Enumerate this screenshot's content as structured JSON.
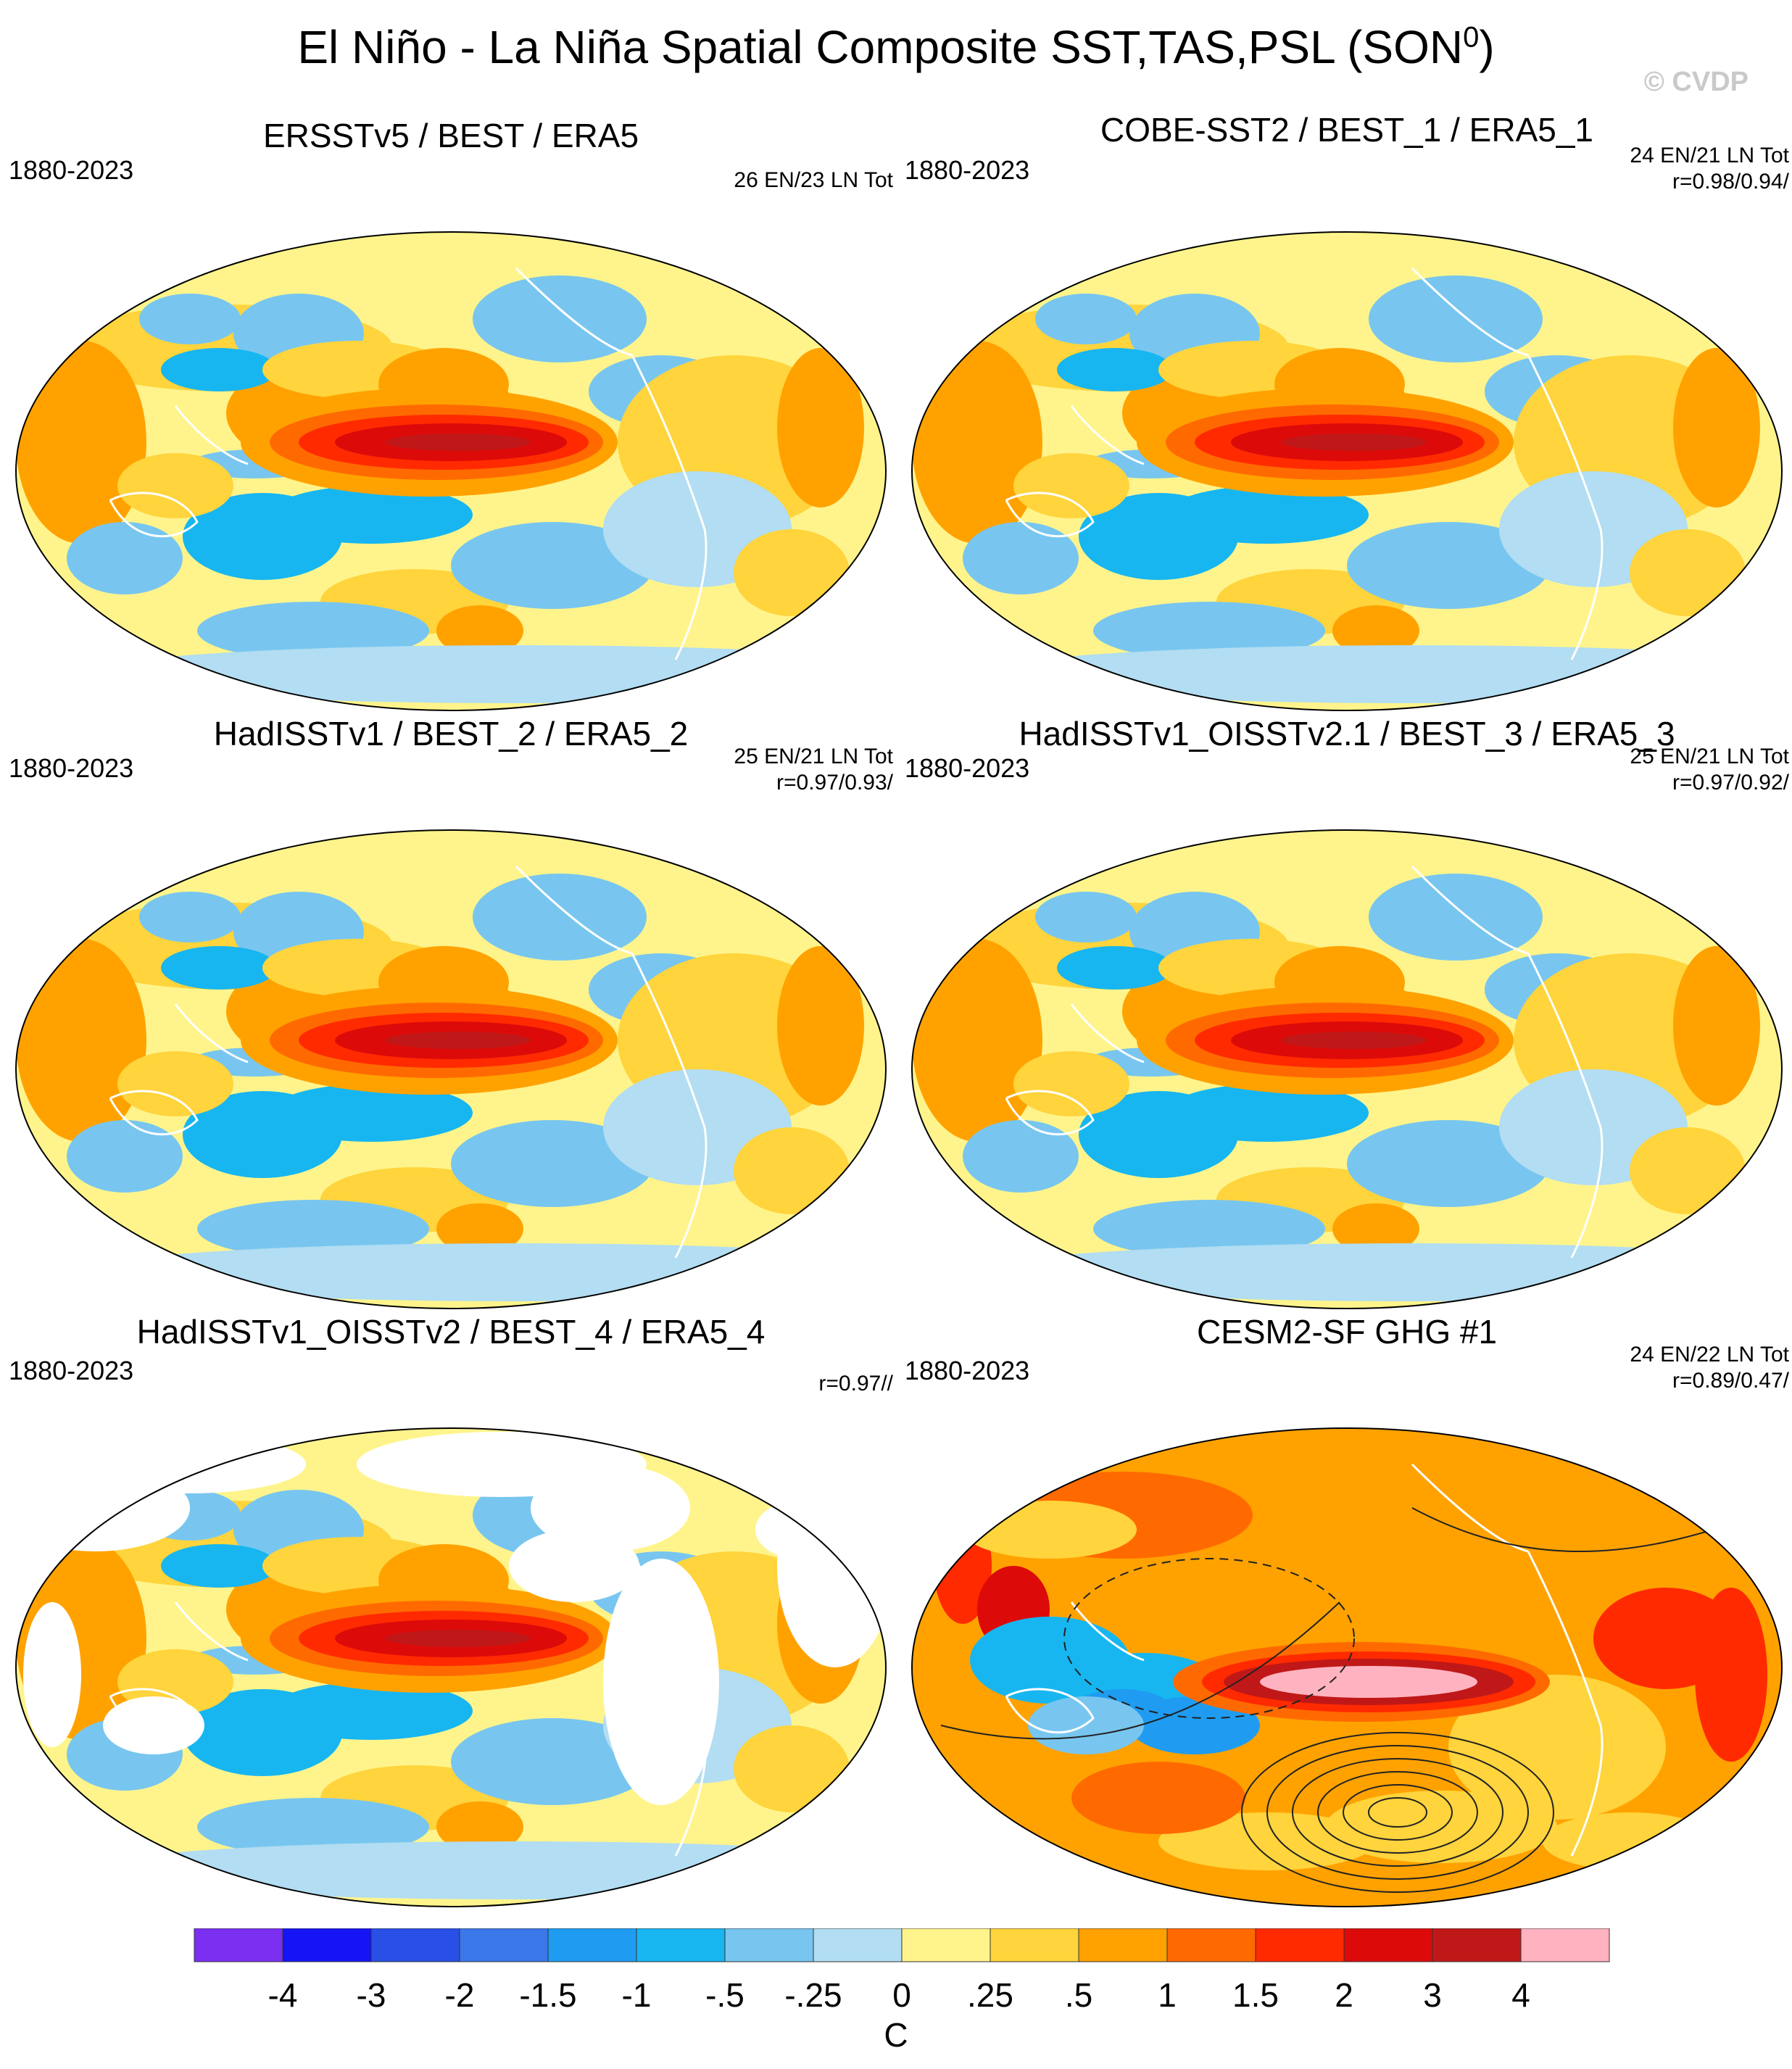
{
  "title": "El Niño - La Niña Spatial Composite SST,TAS,PSL (SON",
  "title_sup": "0",
  "title_end": ")",
  "watermark": "© CVDP",
  "panels": [
    {
      "title": "ERSSTv5 / BEST / ERA5",
      "years": "1880-2023",
      "stat1": "26 EN/23 LN Tot",
      "stat2": ""
    },
    {
      "title": "COBE-SST2 / BEST_1 / ERA5_1",
      "years": "1880-2023",
      "stat1": "24 EN/21 LN Tot",
      "stat2": "r=0.98/0.94/"
    },
    {
      "title": "HadISSTv1 / BEST_2 / ERA5_2",
      "years": "1880-2023",
      "stat1": "25 EN/21 LN Tot",
      "stat2": "r=0.97/0.93/"
    },
    {
      "title": "HadISSTv1_OISSTv2.1 / BEST_3 / ERA5_3",
      "years": "1880-2023",
      "stat1": "25 EN/21 LN Tot",
      "stat2": "r=0.97/0.92/"
    },
    {
      "title": "HadISSTv1_OISSTv2 / BEST_4 / ERA5_4",
      "years": "1880-2023",
      "stat1": "",
      "stat2": "r=0.97//"
    },
    {
      "title": "CESM2-SF GHG #1",
      "years": "1880-2023",
      "stat1": "24 EN/22 LN Tot",
      "stat2": "r=0.89/0.47/"
    }
  ],
  "chart_data": {
    "type": "heatmap",
    "projection": "Robinson world map, Pacific-centered",
    "variable": "El Niño minus La Niña composite of SST, TAS, PSL, season SON(0)",
    "units": "C",
    "colorbar": {
      "levels": [
        "-4",
        "-3",
        "-2",
        "-1.5",
        "-1",
        "-.5",
        "-.25",
        "0",
        ".25",
        ".5",
        "1",
        "1.5",
        "2",
        "3",
        "4"
      ],
      "colors": [
        "#7b2ff0",
        "#1414f5",
        "#2a4fe6",
        "#3a78ea",
        "#1f9cf2",
        "#17b6f0",
        "#78c6ef",
        "#b2ddf2",
        "#fff48c",
        "#ffd43c",
        "#ffa200",
        "#ff6a00",
        "#ff2a00",
        "#dd0a0a",
        "#c01818",
        "#ffb3c0"
      ]
    },
    "features": [
      "Positive anomaly maximum (2 to 3 C) along the central/eastern equatorial Pacific",
      "Negative anomalies (-0.5 to -1.5 C) in the western Pacific horseshoe and North Pacific",
      "Positive anomalies over the Indian Ocean",
      "Panel 6 (CESM2-SF GHG #1): peak > 4 C in eastern Pacific, PSL contours overlaid, strong low near 60S"
    ]
  }
}
